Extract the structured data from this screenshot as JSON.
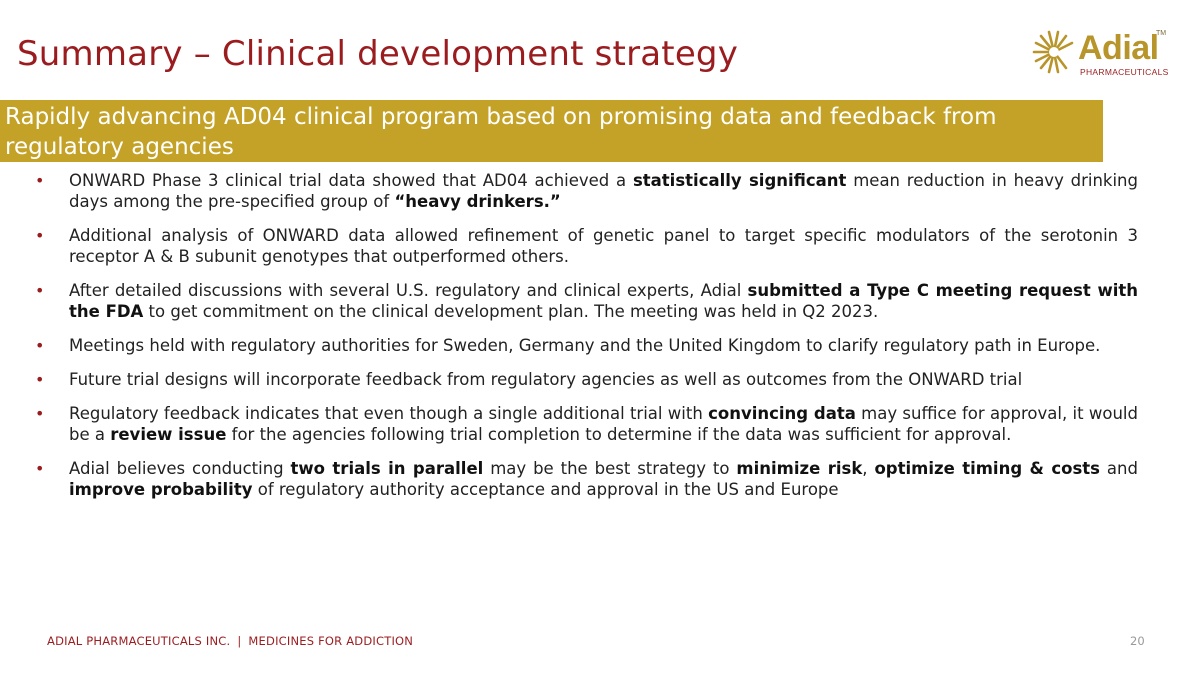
{
  "slide": {
    "title": "Summary – Clinical development strategy",
    "banner": "Rapidly advancing AD04 clinical program based on promising data and feedback from regulatory agencies"
  },
  "logo": {
    "brand": "Adial",
    "tm": "TM",
    "subtitle": "PHARMACEUTICALS",
    "icon": "sunburst-icon"
  },
  "bullets": [
    [
      {
        "t": "ONWARD Phase 3 clinical trial data showed that AD04 achieved a "
      },
      {
        "t": "statistically significant",
        "b": true
      },
      {
        "t": " mean reduction in heavy drinking days among the pre-specified group of "
      },
      {
        "t": "“heavy drinkers.”",
        "b": true
      }
    ],
    [
      {
        "t": "Additional analysis of ONWARD data allowed refinement of genetic panel to target specific modulators of the serotonin 3 receptor A & B subunit genotypes that outperformed others."
      }
    ],
    [
      {
        "t": "After detailed discussions with several U.S. regulatory and clinical experts, Adial "
      },
      {
        "t": "submitted a Type C meeting request with the FDA",
        "b": true
      },
      {
        "t": " to get commitment on the clinical development plan. The meeting was held in Q2 2023."
      }
    ],
    [
      {
        "t": "Meetings held with regulatory authorities for Sweden, Germany and the United Kingdom to clarify regulatory path in Europe."
      }
    ],
    [
      {
        "t": "Future trial designs will incorporate feedback from regulatory agencies as well as outcomes from the ONWARD trial"
      }
    ],
    [
      {
        "t": "Regulatory feedback indicates that even though a single additional trial with "
      },
      {
        "t": "convincing data",
        "b": true
      },
      {
        "t": " may suffice for approval, it would be a "
      },
      {
        "t": "review issue",
        "b": true
      },
      {
        "t": " for the agencies following trial completion to determine if the data was sufficient for approval."
      }
    ],
    [
      {
        "t": "Adial believes conducting "
      },
      {
        "t": "two trials in parallel",
        "b": true
      },
      {
        "t": " may be the best strategy to "
      },
      {
        "t": "minimize risk",
        "b": true
      },
      {
        "t": ", "
      },
      {
        "t": "optimize timing & costs",
        "b": true
      },
      {
        "t": " and "
      },
      {
        "t": "improve probability",
        "b": true
      },
      {
        "t": " of regulatory authority acceptance and approval in the US and Europe"
      }
    ]
  ],
  "bullet_marker": "•",
  "footer": {
    "company": "ADIAL PHARMACEUTICALS INC.",
    "separator": "|",
    "tagline": "MEDICINES FOR ADDICTION",
    "page_number": "20"
  },
  "colors": {
    "title": "#9b1c1f",
    "banner": "#c4a227",
    "logo_gold": "#b8952a"
  }
}
